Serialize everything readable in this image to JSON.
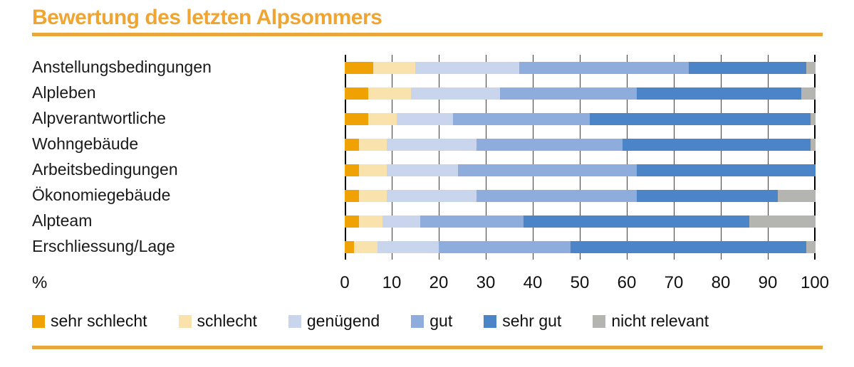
{
  "title": "Bewertung des letzten Alpsommers",
  "percent_label": "%",
  "colors": {
    "title_text": "#F0A431",
    "rule": "#E9A63C",
    "gridline": "#3b3b3b",
    "axis_edge": "#000000"
  },
  "chart_data": {
    "type": "bar",
    "variant": "stacked-horizontal",
    "title": "Bewertung des letzten Alpsommers",
    "xlabel": "%",
    "ylabel": "",
    "xlim": [
      0,
      100
    ],
    "x_ticks": [
      0,
      10,
      20,
      30,
      40,
      50,
      60,
      70,
      80,
      90,
      100
    ],
    "grid": "vertical",
    "legend_position": "bottom",
    "categories": [
      "Anstellungsbedingungen",
      "Alpleben",
      "Alpverantwortliche",
      "Wohngebäude",
      "Arbeitsbedingungen",
      "Ökonomiegebäude",
      "Alpteam",
      "Erschliessung/Lage"
    ],
    "series": [
      {
        "name": "sehr schlecht",
        "color": "#F0A202",
        "values": [
          6,
          5,
          5,
          3,
          3,
          3,
          3,
          2
        ]
      },
      {
        "name": "schlecht",
        "color": "#FAE2AD",
        "values": [
          9,
          9,
          6,
          6,
          6,
          6,
          5,
          5
        ]
      },
      {
        "name": "genügend",
        "color": "#C8D5ED",
        "values": [
          22,
          19,
          12,
          19,
          15,
          19,
          8,
          13
        ]
      },
      {
        "name": "gut",
        "color": "#8FADDC",
        "values": [
          36,
          29,
          29,
          31,
          38,
          34,
          22,
          28
        ]
      },
      {
        "name": "sehr gut",
        "color": "#4C85C7",
        "values": [
          25,
          35,
          47,
          40,
          38,
          30,
          48,
          50
        ]
      },
      {
        "name": "nicht relevant",
        "color": "#B4B4B1",
        "values": [
          2,
          3,
          1,
          1,
          0,
          8,
          14,
          2
        ]
      }
    ]
  }
}
